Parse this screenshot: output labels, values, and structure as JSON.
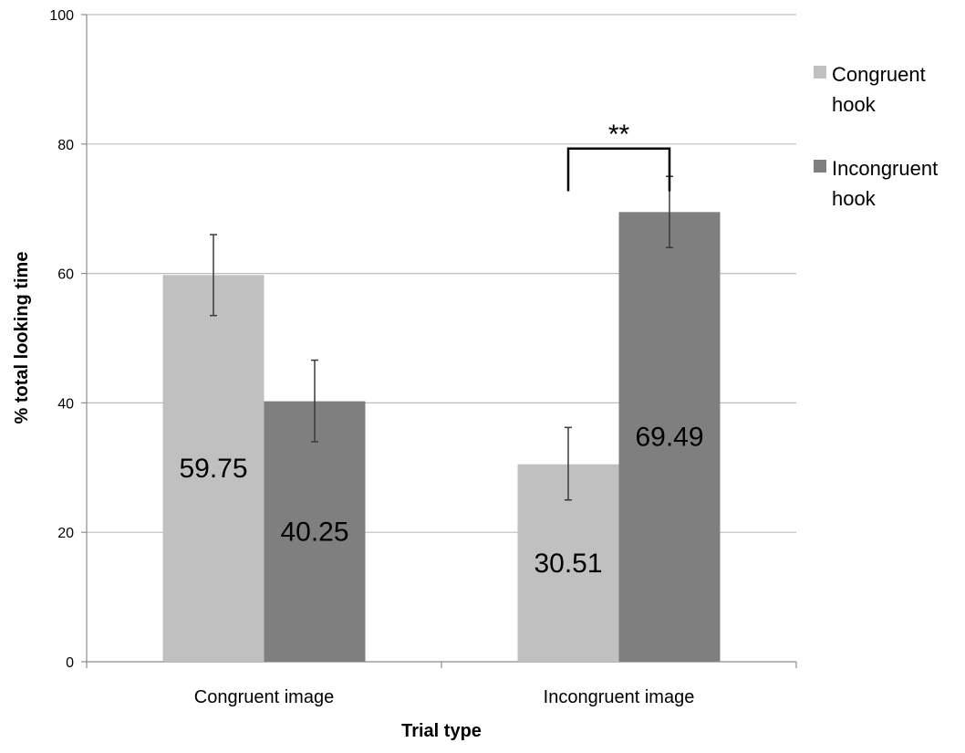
{
  "chart_data": {
    "type": "bar",
    "title": "",
    "xlabel": "Trial type",
    "ylabel": "% total looking time",
    "ylim": [
      0,
      100
    ],
    "yticks": [
      0,
      20,
      40,
      60,
      80,
      100
    ],
    "categories": [
      "Congruent image",
      "Incongruent image"
    ],
    "series": [
      {
        "name": "Congruent hook",
        "name_lines": [
          "Congruent",
          "hook"
        ],
        "color": "#c0c0c0",
        "values": [
          59.75,
          30.51
        ],
        "value_labels": [
          "59.75",
          "30.51"
        ],
        "error": [
          [
            53.5,
            66.0
          ],
          [
            25.0,
            36.2
          ]
        ]
      },
      {
        "name": "Incongruent hook",
        "name_lines": [
          "Incongruent",
          "hook"
        ],
        "color": "#7f7f7f",
        "values": [
          40.25,
          69.49
        ],
        "value_labels": [
          "40.25",
          "69.49"
        ],
        "error": [
          [
            34.0,
            46.6
          ],
          [
            64.0,
            75.0
          ]
        ]
      }
    ],
    "grid": true,
    "legend_position": "right",
    "annotations": [
      {
        "text": "**",
        "category": "Incongruent image",
        "type": "significance-bracket"
      }
    ]
  }
}
